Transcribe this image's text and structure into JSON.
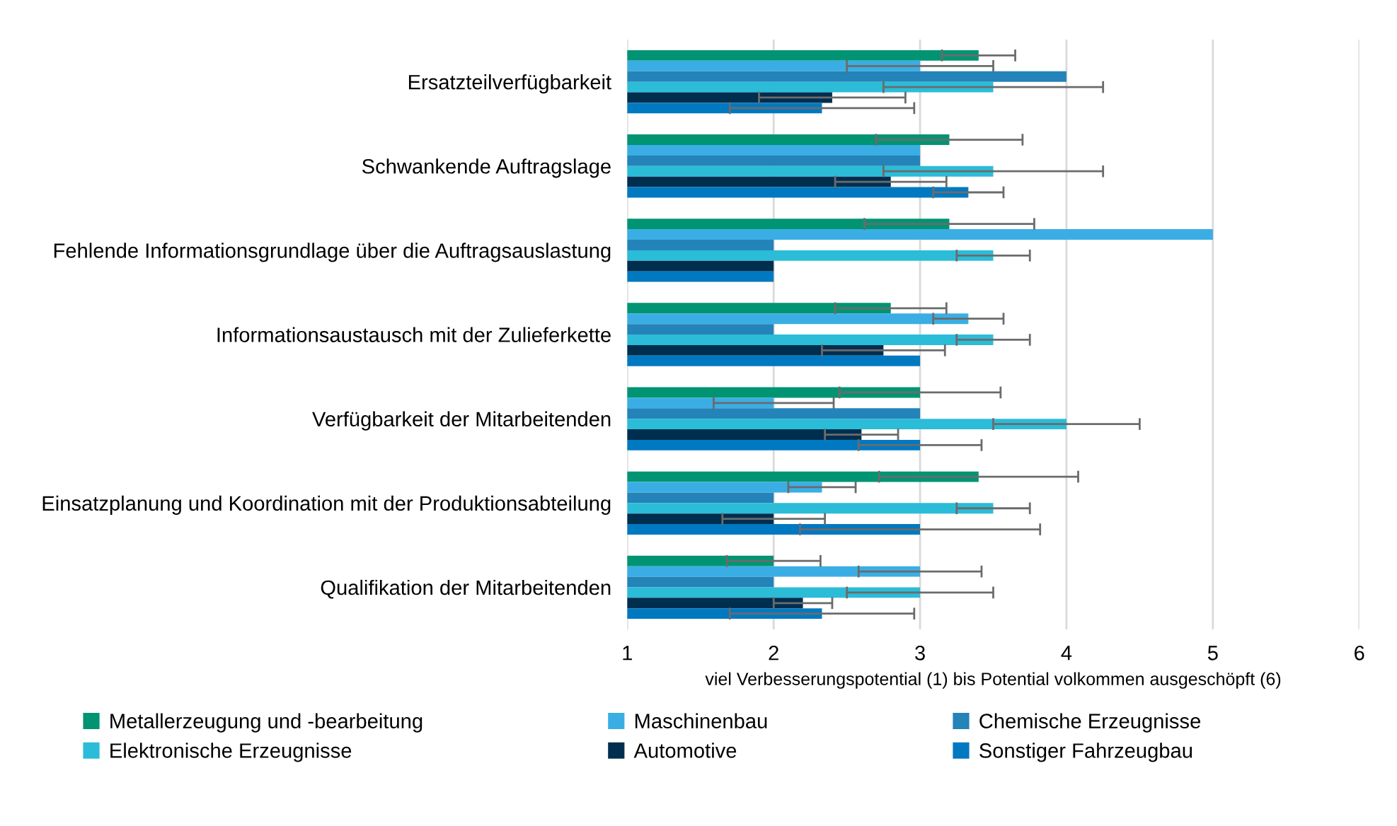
{
  "chart_data": {
    "type": "bar",
    "orientation": "horizontal",
    "xlabel": "viel Verbesserungspotential (1) bis Potential volkommen ausgeschöpft (6)",
    "categories": [
      "Ersatzteilverfügbarkeit",
      "Schwankende Auftragslage",
      "Fehlende Informationsgrundlage über die Auftragsauslastung",
      "Informationsaustausch mit der Zulieferkette",
      "Verfügbarkeit der Mitarbeitenden",
      "Einsatzplanung und Koordination mit der Produktionsabteilung",
      "Qualifikation der Mitarbeitenden"
    ],
    "series": [
      {
        "name": "Metallerzeugung und -bearbeitung",
        "color": "#009473",
        "values": [
          3.4,
          3.2,
          3.2,
          2.8,
          3.0,
          3.4,
          2.0
        ],
        "errors": [
          0.25,
          0.5,
          0.58,
          0.38,
          0.55,
          0.68,
          0.32
        ]
      },
      {
        "name": "Maschinenbau",
        "color": "#3aaee4",
        "values": [
          3.0,
          3.0,
          5.0,
          3.33,
          2.0,
          2.33,
          3.0
        ],
        "errors": [
          0.5,
          null,
          null,
          0.24,
          0.41,
          0.23,
          0.42
        ]
      },
      {
        "name": "Chemische Erzeugnisse",
        "color": "#2483b8",
        "values": [
          4.0,
          3.0,
          2.0,
          2.0,
          3.0,
          2.0,
          2.0
        ],
        "errors": [
          null,
          null,
          null,
          null,
          null,
          null,
          null
        ]
      },
      {
        "name": "Elektronische Erzeugnisse",
        "color": "#2bbcd8",
        "values": [
          3.5,
          3.5,
          3.5,
          3.5,
          4.0,
          3.5,
          3.0
        ],
        "errors": [
          0.75,
          0.75,
          0.25,
          0.25,
          0.5,
          0.25,
          0.5
        ]
      },
      {
        "name": "Automotive",
        "color": "#002e4f",
        "values": [
          2.4,
          2.8,
          2.0,
          2.75,
          2.6,
          2.0,
          2.2
        ],
        "errors": [
          0.5,
          0.38,
          null,
          0.42,
          0.25,
          0.35,
          0.2
        ]
      },
      {
        "name": "Sonstiger Fahrzeugbau",
        "color": "#0079c1",
        "values": [
          2.33,
          3.33,
          2.0,
          3.0,
          3.0,
          3.0,
          2.33
        ],
        "errors": [
          0.63,
          0.24,
          null,
          null,
          0.42,
          0.82,
          0.63
        ]
      }
    ],
    "xlim": [
      1,
      6
    ],
    "xticks": [
      1,
      2,
      3,
      4,
      5,
      6
    ],
    "grid": "x",
    "legend": "bottom"
  }
}
